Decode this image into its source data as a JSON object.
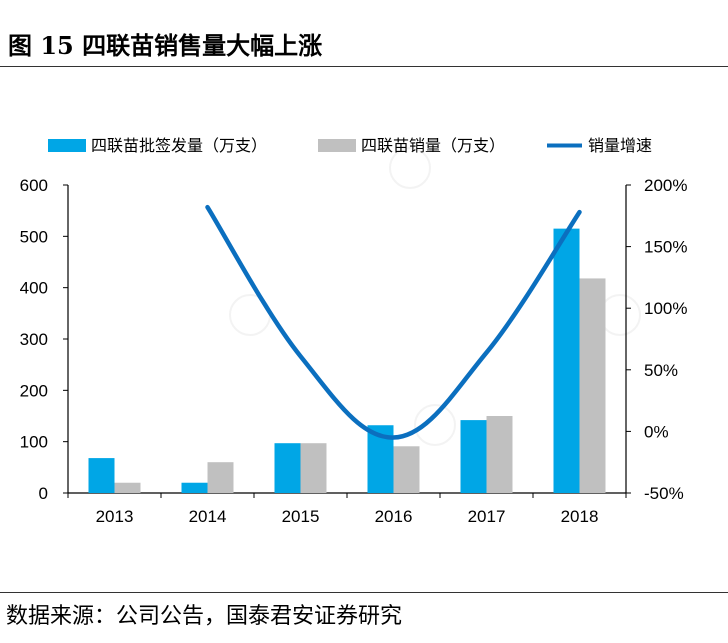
{
  "title": "图 15 四联苗销售量大幅上涨",
  "source": "数据来源：公司公告，国泰君安证券研究",
  "colors": {
    "bar1": "#00a6e6",
    "bar2": "#c0c0c0",
    "line": "#0b6fbf",
    "axis": "#000000"
  },
  "chart_data": {
    "type": "bar",
    "categories": [
      "2013",
      "2014",
      "2015",
      "2016",
      "2017",
      "2018"
    ],
    "series": [
      {
        "name": "四联苗批签发量（万支）",
        "type": "bar",
        "axis": "left",
        "values": [
          68,
          20,
          97,
          132,
          142,
          515
        ]
      },
      {
        "name": "四联苗销量（万支）",
        "type": "bar",
        "axis": "left",
        "values": [
          20,
          60,
          97,
          91,
          150,
          418
        ]
      },
      {
        "name": "销量增速",
        "type": "line",
        "axis": "right",
        "values": [
          null,
          1.82,
          0.61,
          -0.05,
          0.64,
          1.78
        ]
      }
    ],
    "y_left": {
      "min": 0,
      "max": 600,
      "ticks": [
        0,
        100,
        200,
        300,
        400,
        500,
        600
      ]
    },
    "y_right": {
      "min": -0.5,
      "max": 2.0,
      "ticks": [
        "-50%",
        "0%",
        "50%",
        "100%",
        "150%",
        "200%"
      ],
      "tick_values": [
        -0.5,
        0,
        0.5,
        1.0,
        1.5,
        2.0
      ]
    },
    "legend_position": "top"
  }
}
